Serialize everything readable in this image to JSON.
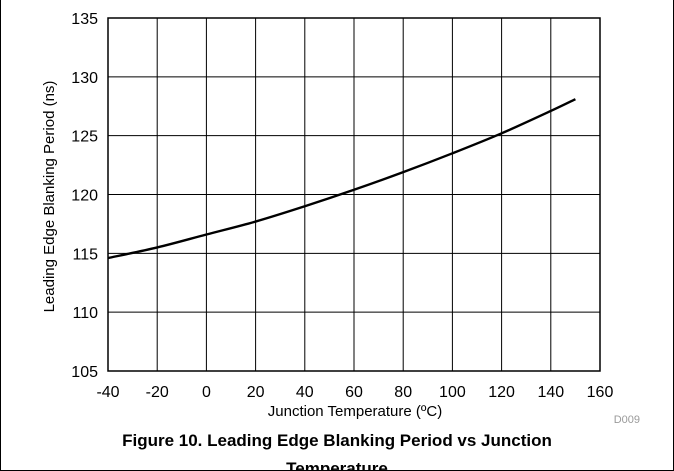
{
  "figure": {
    "caption_line1": "Figure 10. Leading Edge Blanking Period vs Junction",
    "caption_line2": "Temperature",
    "code": "D009"
  },
  "chart_data": {
    "type": "line",
    "title": "Leading Edge Blanking Period vs Junction Temperature",
    "xlabel": "Junction Temperature (ºC)",
    "ylabel": "Leading Edge Blanking Period (ns)",
    "xlim": [
      -40,
      160
    ],
    "ylim": [
      105,
      135
    ],
    "xticks": [
      "-40",
      "-20",
      "0",
      "20",
      "40",
      "60",
      "80",
      "100",
      "120",
      "140",
      "160"
    ],
    "yticks": [
      "105",
      "110",
      "115",
      "120",
      "125",
      "130",
      "135"
    ],
    "grid": true,
    "line_color": "#000000",
    "series": [
      {
        "x": [
          -40,
          -20,
          0,
          20,
          40,
          60,
          80,
          100,
          120,
          140,
          150
        ],
        "y": [
          114.6,
          115.5,
          116.6,
          117.7,
          119.0,
          120.4,
          121.9,
          123.5,
          125.2,
          127.1,
          128.1
        ]
      }
    ]
  }
}
